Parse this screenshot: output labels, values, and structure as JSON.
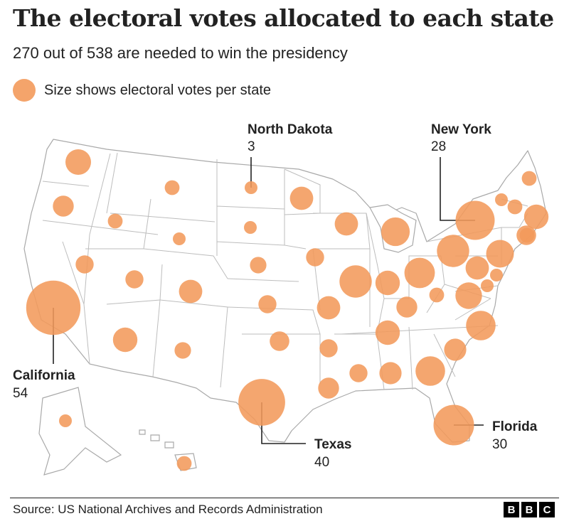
{
  "title": "The electoral votes allocated to each state",
  "subtitle": "270 out of 538 are needed to win the presidency",
  "legend_text": "Size shows electoral votes per state",
  "bubble_color": "#f39a5b",
  "callouts": {
    "north_dakota": {
      "name": "North Dakota",
      "value": "3"
    },
    "new_york": {
      "name": "New York",
      "value": "28"
    },
    "california": {
      "name": "California",
      "value": "54"
    },
    "texas": {
      "name": "Texas",
      "value": "40"
    },
    "florida": {
      "name": "Florida",
      "value": "30"
    }
  },
  "states": [
    {
      "state": "WA",
      "ev": 12
    },
    {
      "state": "OR",
      "ev": 8
    },
    {
      "state": "CA",
      "ev": 54
    },
    {
      "state": "ID",
      "ev": 4
    },
    {
      "state": "NV",
      "ev": 6
    },
    {
      "state": "MT",
      "ev": 4
    },
    {
      "state": "WY",
      "ev": 3
    },
    {
      "state": "UT",
      "ev": 6
    },
    {
      "state": "AZ",
      "ev": 11
    },
    {
      "state": "CO",
      "ev": 10
    },
    {
      "state": "NM",
      "ev": 5
    },
    {
      "state": "ND",
      "ev": 3
    },
    {
      "state": "SD",
      "ev": 3
    },
    {
      "state": "NE",
      "ev": 5
    },
    {
      "state": "KS",
      "ev": 6
    },
    {
      "state": "OK",
      "ev": 7
    },
    {
      "state": "TX",
      "ev": 40
    },
    {
      "state": "MN",
      "ev": 10
    },
    {
      "state": "IA",
      "ev": 6
    },
    {
      "state": "MO",
      "ev": 10
    },
    {
      "state": "AR",
      "ev": 6
    },
    {
      "state": "LA",
      "ev": 8
    },
    {
      "state": "WI",
      "ev": 10
    },
    {
      "state": "IL",
      "ev": 19
    },
    {
      "state": "MI",
      "ev": 15
    },
    {
      "state": "IN",
      "ev": 11
    },
    {
      "state": "OH",
      "ev": 17
    },
    {
      "state": "KY",
      "ev": 8
    },
    {
      "state": "TN",
      "ev": 11
    },
    {
      "state": "MS",
      "ev": 6
    },
    {
      "state": "AL",
      "ev": 9
    },
    {
      "state": "GA",
      "ev": 16
    },
    {
      "state": "FL",
      "ev": 30
    },
    {
      "state": "SC",
      "ev": 9
    },
    {
      "state": "NC",
      "ev": 16
    },
    {
      "state": "VA",
      "ev": 13
    },
    {
      "state": "WV",
      "ev": 4
    },
    {
      "state": "PA",
      "ev": 19
    },
    {
      "state": "NY",
      "ev": 28
    },
    {
      "state": "NJ",
      "ev": 14
    },
    {
      "state": "MD",
      "ev": 10
    },
    {
      "state": "DE",
      "ev": 3
    },
    {
      "state": "DC",
      "ev": 3
    },
    {
      "state": "CT",
      "ev": 7
    },
    {
      "state": "RI",
      "ev": 4
    },
    {
      "state": "MA",
      "ev": 11
    },
    {
      "state": "VT",
      "ev": 3
    },
    {
      "state": "NH",
      "ev": 4
    },
    {
      "state": "ME",
      "ev": 4
    },
    {
      "state": "AK",
      "ev": 3
    },
    {
      "state": "HI",
      "ev": 4
    }
  ],
  "source": "Source: US National Archives and Records Administration",
  "logo": [
    "B",
    "B",
    "C"
  ]
}
